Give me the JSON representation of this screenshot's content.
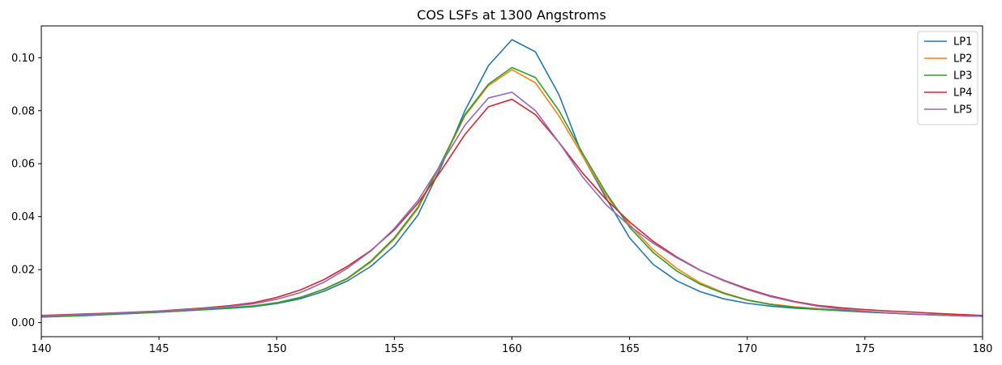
{
  "chart_data": {
    "type": "line",
    "title": "COS LSFs at 1300 Angstroms",
    "xlabel": "",
    "ylabel": "",
    "xlim": [
      140,
      180
    ],
    "ylim": [
      -0.0053,
      0.112
    ],
    "xticks": [
      140,
      145,
      150,
      155,
      160,
      165,
      170,
      175,
      180
    ],
    "xtick_labels": [
      "140",
      "145",
      "150",
      "155",
      "160",
      "165",
      "170",
      "175",
      "180"
    ],
    "yticks": [
      0.0,
      0.02,
      0.04,
      0.06,
      0.08,
      0.1
    ],
    "ytick_labels": [
      "0.00",
      "0.02",
      "0.04",
      "0.06",
      "0.08",
      "0.10"
    ],
    "grid": false,
    "legend_position": "top-right",
    "x": [
      140,
      141,
      142,
      143,
      144,
      145,
      146,
      147,
      148,
      149,
      150,
      151,
      152,
      153,
      154,
      155,
      156,
      157,
      158,
      159,
      160,
      161,
      162,
      163,
      164,
      165,
      166,
      167,
      168,
      169,
      170,
      171,
      172,
      173,
      174,
      175,
      176,
      177,
      178,
      179,
      180
    ],
    "series": [
      {
        "name": "LP1",
        "color": "#1f77b4",
        "values": [
          0.0021,
          0.0024,
          0.0027,
          0.0031,
          0.0035,
          0.0039,
          0.0044,
          0.0049,
          0.0054,
          0.006,
          0.0072,
          0.009,
          0.0118,
          0.0157,
          0.0212,
          0.029,
          0.0405,
          0.059,
          0.08,
          0.097,
          0.1068,
          0.1022,
          0.086,
          0.063,
          0.047,
          0.032,
          0.022,
          0.0158,
          0.0117,
          0.009,
          0.0073,
          0.0062,
          0.0055,
          0.005,
          0.0045,
          0.004,
          0.0036,
          0.0032,
          0.0029,
          0.0026,
          0.0024
        ]
      },
      {
        "name": "LP2",
        "color": "#ff7f0e",
        "values": [
          0.0022,
          0.0025,
          0.0028,
          0.0032,
          0.0036,
          0.004,
          0.0045,
          0.005,
          0.0056,
          0.0063,
          0.0075,
          0.0095,
          0.0125,
          0.0165,
          0.0228,
          0.0315,
          0.043,
          0.06,
          0.078,
          0.0895,
          0.0955,
          0.0905,
          0.078,
          0.063,
          0.048,
          0.037,
          0.0275,
          0.0205,
          0.015,
          0.0113,
          0.0086,
          0.007,
          0.006,
          0.0053,
          0.0047,
          0.0042,
          0.0037,
          0.0033,
          0.003,
          0.0027,
          0.0025
        ]
      },
      {
        "name": "LP3",
        "color": "#2ca02c",
        "values": [
          0.0022,
          0.0025,
          0.0028,
          0.0032,
          0.0036,
          0.004,
          0.0045,
          0.005,
          0.0056,
          0.0063,
          0.0075,
          0.0095,
          0.0126,
          0.0167,
          0.0232,
          0.032,
          0.0435,
          0.0605,
          0.0785,
          0.09,
          0.0963,
          0.0925,
          0.08,
          0.064,
          0.049,
          0.036,
          0.0265,
          0.0195,
          0.0145,
          0.011,
          0.0085,
          0.0068,
          0.0058,
          0.0051,
          0.0046,
          0.0041,
          0.0036,
          0.0032,
          0.0029,
          0.0026,
          0.0024
        ]
      },
      {
        "name": "LP4",
        "color": "#d62728",
        "values": [
          0.0027,
          0.003,
          0.0033,
          0.0036,
          0.004,
          0.0044,
          0.005,
          0.0056,
          0.0064,
          0.0075,
          0.0095,
          0.0123,
          0.0162,
          0.0212,
          0.0272,
          0.035,
          0.045,
          0.0575,
          0.071,
          0.0815,
          0.0843,
          0.0785,
          0.068,
          0.0565,
          0.0465,
          0.038,
          0.0307,
          0.0248,
          0.0198,
          0.016,
          0.0128,
          0.0101,
          0.008,
          0.0065,
          0.0056,
          0.0049,
          0.0044,
          0.004,
          0.0035,
          0.0031,
          0.0027
        ]
      },
      {
        "name": "LP5",
        "color": "#9467bd",
        "values": [
          0.0025,
          0.0028,
          0.0031,
          0.0035,
          0.0039,
          0.0043,
          0.0048,
          0.0054,
          0.0061,
          0.0071,
          0.0088,
          0.0113,
          0.0152,
          0.0205,
          0.027,
          0.0355,
          0.046,
          0.06,
          0.0745,
          0.0848,
          0.087,
          0.08,
          0.068,
          0.055,
          0.0445,
          0.0365,
          0.03,
          0.0245,
          0.0197,
          0.0158,
          0.0125,
          0.0098,
          0.0078,
          0.0062,
          0.0051,
          0.0043,
          0.0037,
          0.0032,
          0.0029,
          0.0026,
          0.0024
        ]
      }
    ]
  }
}
